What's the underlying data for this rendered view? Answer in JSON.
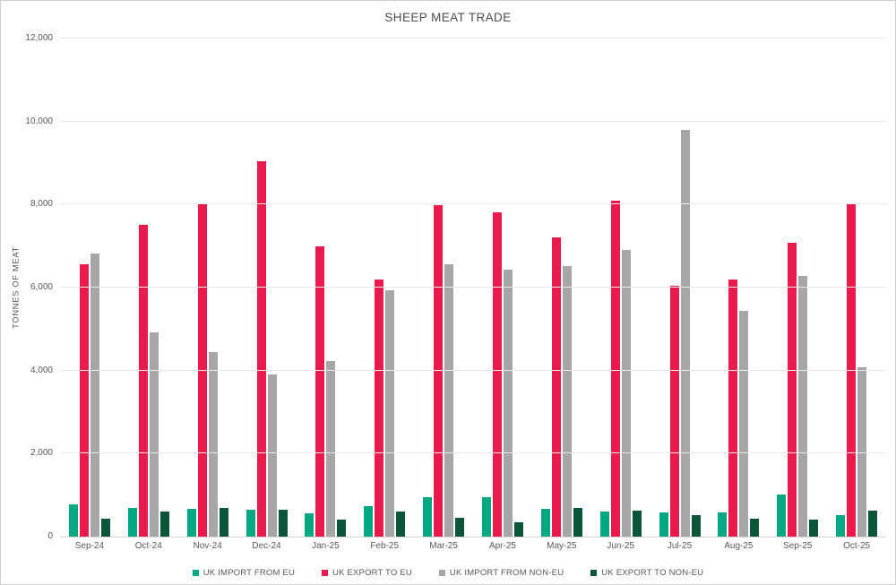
{
  "page": {
    "title": "SHEEP MEAT TRADE"
  },
  "chart_data": {
    "type": "bar",
    "title": "SHEEP MEAT TRADE",
    "ylabel": "TONNES OF MEAT",
    "xlabel": "",
    "ylim": [
      0,
      12000
    ],
    "grid": "horizontal",
    "legend_position": "bottom",
    "yticks": [
      {
        "value": 0,
        "label": "0"
      },
      {
        "value": 2000,
        "label": "2,000"
      },
      {
        "value": 4000,
        "label": "4,000"
      },
      {
        "value": 6000,
        "label": "6,000"
      },
      {
        "value": 8000,
        "label": "8,000"
      },
      {
        "value": 10000,
        "label": "10,000"
      },
      {
        "value": 12000,
        "label": "12,000"
      }
    ],
    "categories": [
      "Sep-24",
      "Oct-24",
      "Nov-24",
      "Dec-24",
      "Jan-25",
      "Feb-25",
      "Mar-25",
      "Apr-25",
      "May-25",
      "Jun-25",
      "Jul-25",
      "Aug-25",
      "Sep-25",
      "Oct-25"
    ],
    "series": [
      {
        "name": "UK IMPORT FROM EU",
        "color": "#00A884",
        "values": [
          780,
          700,
          670,
          640,
          570,
          730,
          960,
          960,
          660,
          600,
          590,
          580,
          1020,
          510
        ]
      },
      {
        "name": "UK EXPORT TO EU",
        "color": "#EA1A4C",
        "values": [
          6560,
          7500,
          8020,
          9050,
          6990,
          6200,
          7980,
          7820,
          7210,
          8090,
          6040,
          6200,
          7070,
          8010
        ]
      },
      {
        "name": "UK IMPORT FROM NON-EU",
        "color": "#A6A6A6",
        "values": [
          6830,
          4930,
          4440,
          3900,
          4220,
          5940,
          6570,
          6440,
          6510,
          6900,
          9790,
          5440,
          6290,
          4080
        ]
      },
      {
        "name": "UK EXPORT TO NON-EU",
        "color": "#0B5638",
        "values": [
          430,
          600,
          690,
          650,
          420,
          600,
          450,
          340,
          690,
          620,
          520,
          440,
          420,
          630
        ]
      }
    ]
  }
}
